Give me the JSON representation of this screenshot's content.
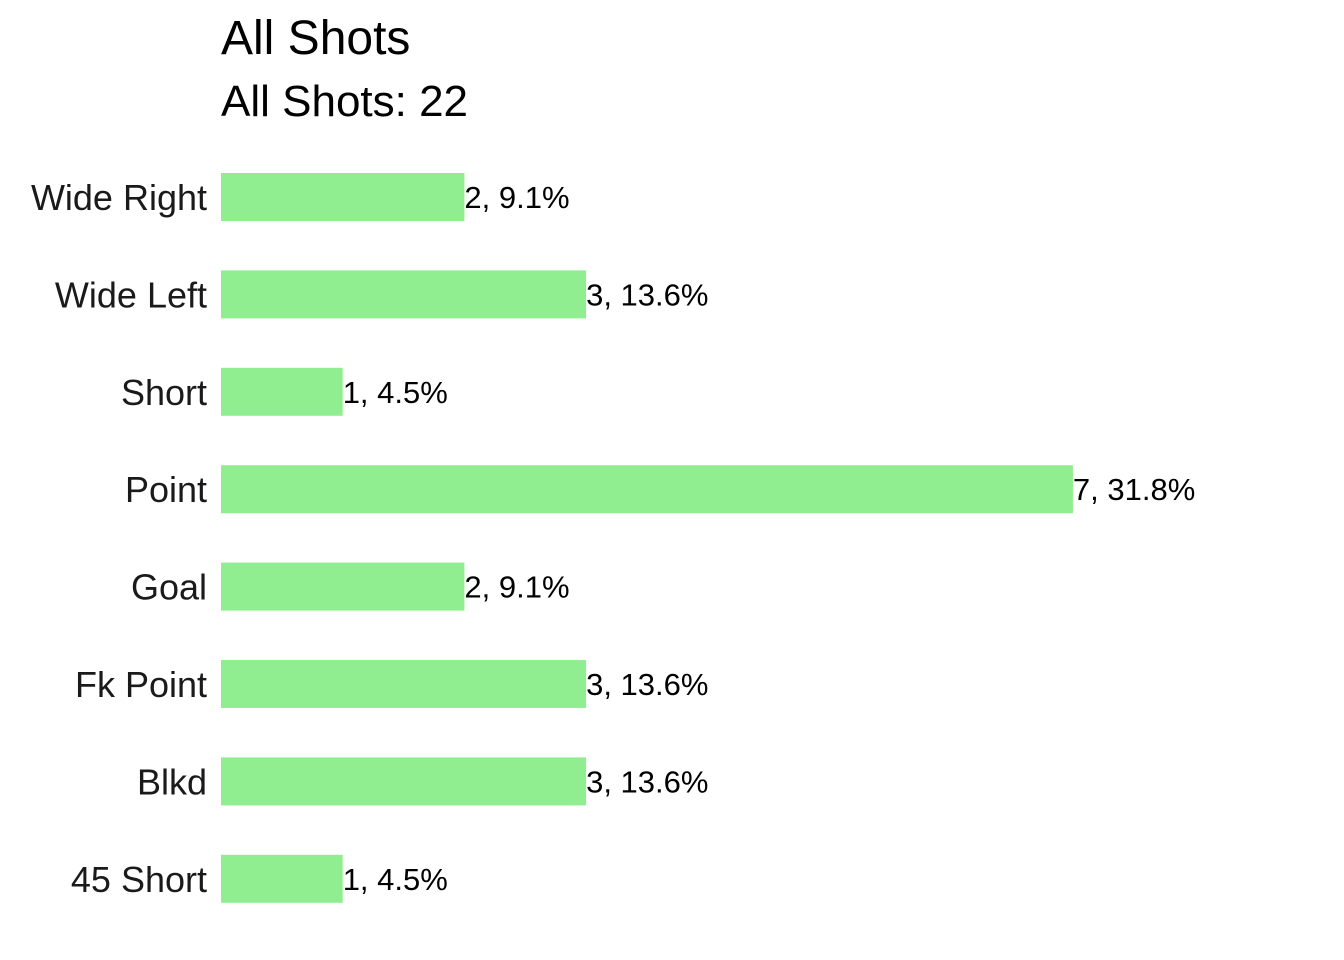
{
  "chart_data": {
    "type": "bar",
    "orientation": "horizontal",
    "title": "All Shots",
    "subtitle": "All Shots: 22",
    "categories": [
      "Wide Right",
      "Wide Left",
      "Short",
      "Point",
      "Goal",
      "Fk Point",
      "Blkd",
      "45 Short"
    ],
    "values": [
      2,
      3,
      1,
      7,
      2,
      3,
      3,
      1
    ],
    "data_labels": [
      "2, 9.1%",
      "3, 13.6%",
      "1, 4.5%",
      "7, 31.8%",
      "2, 9.1%",
      "3, 13.6%",
      "3, 13.6%",
      "1, 4.5%"
    ],
    "xlim": [
      0,
      7
    ],
    "xlabel": "",
    "ylabel": "",
    "grid": false,
    "legend": "none",
    "bar_color": "#90EE90"
  }
}
